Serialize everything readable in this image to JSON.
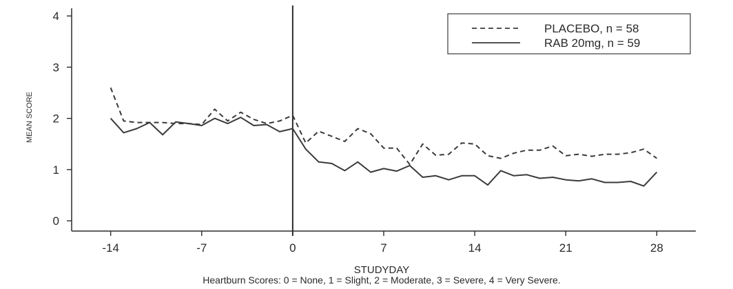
{
  "chart_data": {
    "type": "line",
    "xlabel": "STUDYDAY",
    "ylabel": "MEAN SCORE",
    "note": "Heartburn Scores: 0 = None, 1 = Slight, 2 = Moderate, 3 = Severe, 4 = Very Severe.",
    "xlim": [
      -17,
      31
    ],
    "ylim": [
      -0.2,
      4.15
    ],
    "x_ticks": [
      -14,
      -7,
      0,
      7,
      14,
      21,
      28
    ],
    "x_tick_labels": [
      "-14",
      "-7",
      "0",
      "7",
      "14",
      "21",
      "28"
    ],
    "y_ticks": [
      0,
      1,
      2,
      3,
      4
    ],
    "y_tick_labels": [
      "0",
      "1",
      "2",
      "3",
      "4"
    ],
    "reference_line_x": 0,
    "legend_position": "top-right",
    "grid": false,
    "x": [
      -14,
      -13,
      -12,
      -11,
      -10,
      -9,
      -8,
      -7,
      -6,
      -5,
      -4,
      -3,
      -2,
      -1,
      0,
      1,
      2,
      3,
      4,
      5,
      6,
      7,
      8,
      9,
      10,
      11,
      12,
      13,
      14,
      15,
      16,
      17,
      18,
      19,
      20,
      21,
      22,
      23,
      24,
      25,
      26,
      27,
      28
    ],
    "series": [
      {
        "name": "PLACEBO, n = 58",
        "style": "dashed",
        "values": [
          2.6,
          1.95,
          1.92,
          1.92,
          1.92,
          1.9,
          1.9,
          1.88,
          2.18,
          1.95,
          2.12,
          1.98,
          1.9,
          1.95,
          2.06,
          1.52,
          1.75,
          1.65,
          1.55,
          1.8,
          1.7,
          1.42,
          1.42,
          1.1,
          1.5,
          1.28,
          1.3,
          1.52,
          1.5,
          1.27,
          1.22,
          1.32,
          1.38,
          1.38,
          1.46,
          1.27,
          1.3,
          1.26,
          1.3,
          1.3,
          1.33,
          1.4,
          1.22
        ]
      },
      {
        "name": "RAB 20mg, n = 59",
        "style": "solid",
        "values": [
          2.0,
          1.72,
          1.8,
          1.92,
          1.68,
          1.93,
          1.9,
          1.86,
          2.0,
          1.9,
          2.02,
          1.86,
          1.88,
          1.74,
          1.8,
          1.4,
          1.15,
          1.12,
          0.98,
          1.15,
          0.95,
          1.02,
          0.97,
          1.08,
          0.85,
          0.88,
          0.8,
          0.88,
          0.88,
          0.7,
          0.98,
          0.88,
          0.9,
          0.83,
          0.85,
          0.8,
          0.78,
          0.82,
          0.75,
          0.75,
          0.77,
          0.68,
          0.95
        ]
      }
    ]
  },
  "colors": {
    "line": "#3a3a3a",
    "axis": "#2a2a2a",
    "background": "#ffffff"
  }
}
